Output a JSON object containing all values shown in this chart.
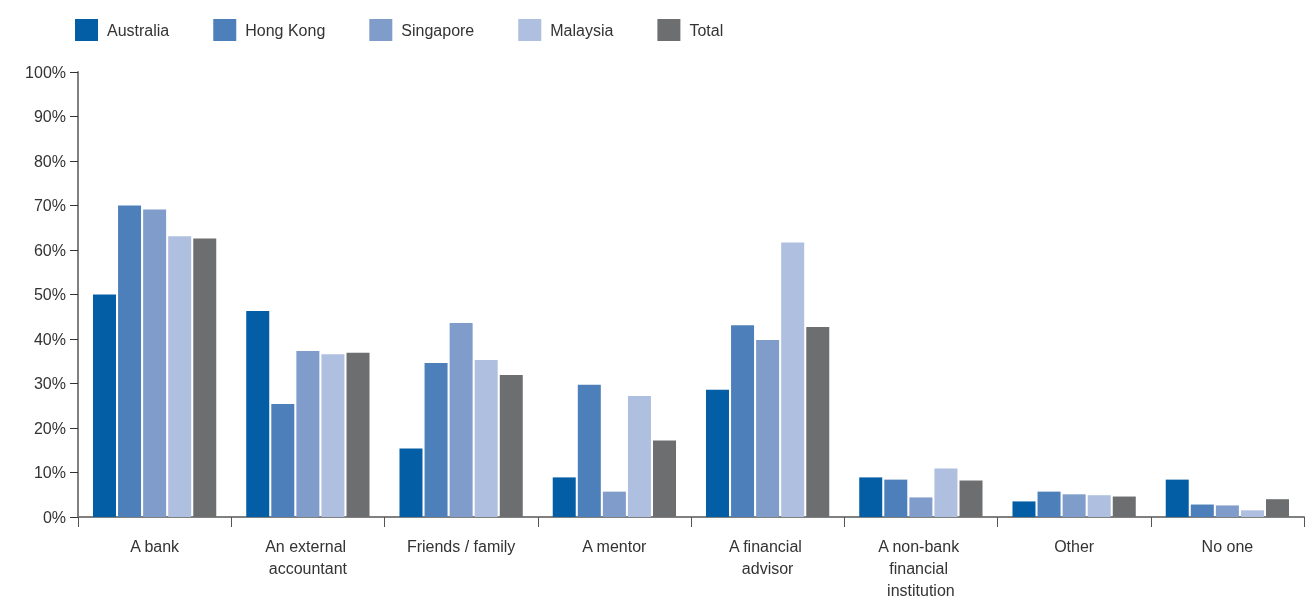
{
  "chart_data": {
    "type": "bar",
    "categories": [
      "A bank",
      "An external accountant",
      "Friends / family",
      "A mentor",
      "A financial advisor",
      "A non-bank financial institution",
      "Other",
      "No one"
    ],
    "series": [
      {
        "name": "Australia",
        "color": "#035ea5",
        "values": [
          50,
          46.3,
          15.4,
          8.9,
          28.6,
          8.9,
          3.5,
          8.4
        ]
      },
      {
        "name": "Hong Kong",
        "color": "#4d7fba",
        "values": [
          70,
          25.4,
          34.6,
          29.7,
          43.1,
          8.4,
          5.7,
          2.8
        ]
      },
      {
        "name": "Singapore",
        "color": "#7f9cca",
        "values": [
          69.1,
          37.3,
          43.6,
          5.7,
          39.8,
          4.4,
          5.1,
          2.6
        ]
      },
      {
        "name": "Malaysia",
        "color": "#aebfdf",
        "values": [
          63.1,
          36.6,
          35.3,
          27.2,
          61.7,
          10.9,
          4.9,
          1.5
        ]
      },
      {
        "name": "Total",
        "color": "#6d6e70",
        "values": [
          62.6,
          36.9,
          31.9,
          17.2,
          42.7,
          8.2,
          4.6,
          4.0
        ]
      }
    ],
    "ylim": [
      0,
      100
    ],
    "yticks": [
      {
        "value": 0,
        "label": "0%"
      },
      {
        "value": 10,
        "label": "10%"
      },
      {
        "value": 20,
        "label": "20%"
      },
      {
        "value": 30,
        "label": "30%"
      },
      {
        "value": 40,
        "label": "40%"
      },
      {
        "value": 50,
        "label": "50%"
      },
      {
        "value": 60,
        "label": "60%"
      },
      {
        "value": 70,
        "label": "70%"
      },
      {
        "value": 80,
        "label": "80%"
      },
      {
        "value": 90,
        "label": "90%"
      },
      {
        "value": 100,
        "label": "100%"
      }
    ],
    "legend": "top left"
  }
}
